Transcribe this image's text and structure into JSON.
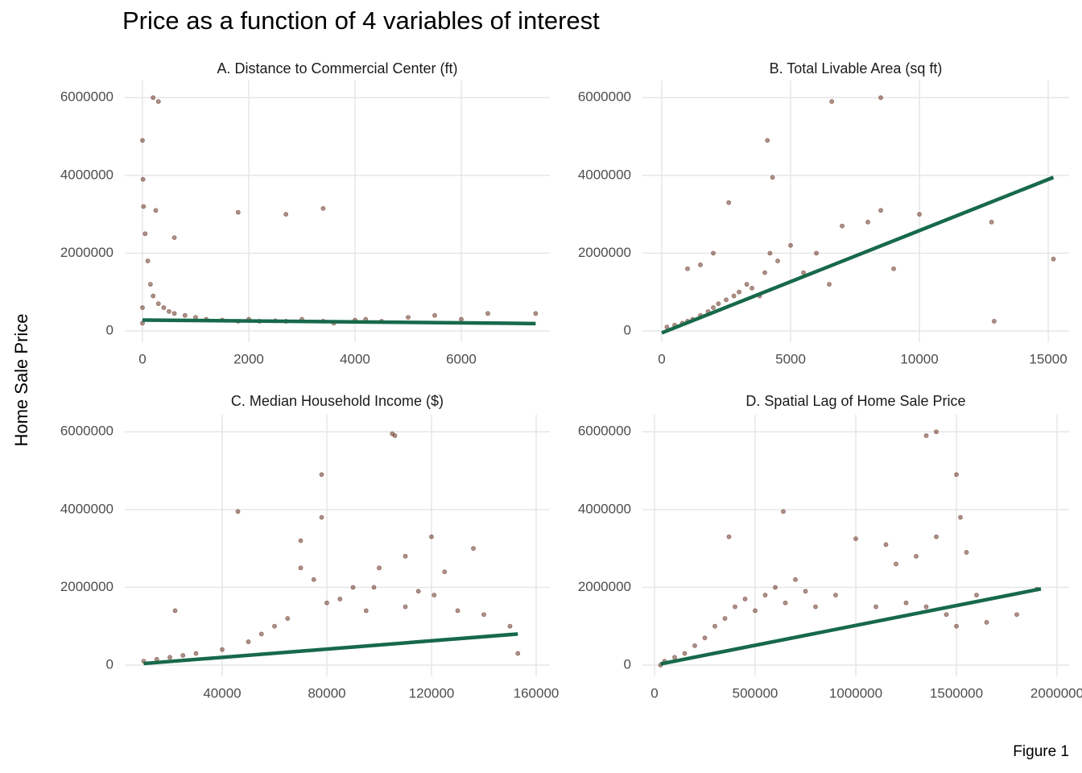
{
  "title": "Price as a function of 4 variables of interest",
  "ylabel": "Home Sale Price",
  "caption": "Figure 1",
  "chart_data": [
    {
      "type": "scatter",
      "title": "A. Distance to Commercial Center (ft)",
      "color": "#5c2211",
      "grid": true,
      "x": [
        0,
        10,
        20,
        50,
        100,
        150,
        200,
        300,
        400,
        500,
        600,
        800,
        1000,
        1200,
        1500,
        1800,
        2000,
        2200,
        2500,
        2700,
        3000,
        3400,
        3600,
        4000,
        4200,
        4500,
        5000,
        5500,
        6000,
        6500,
        7400,
        0,
        0,
        300,
        200,
        1800,
        2700,
        3400,
        250,
        600
      ],
      "values": [
        4900000,
        3900000,
        3200000,
        2500000,
        1800000,
        1200000,
        900000,
        700000,
        600000,
        500000,
        450000,
        400000,
        350000,
        300000,
        280000,
        250000,
        300000,
        250000,
        260000,
        250000,
        300000,
        250000,
        200000,
        280000,
        300000,
        250000,
        350000,
        400000,
        300000,
        450000,
        450000,
        200000,
        600000,
        5900000,
        6000000,
        3050000,
        3000000,
        3150000,
        3100000,
        2400000
      ],
      "fit": {
        "color": "#17694a",
        "x": [
          0,
          7400
        ],
        "values": [
          280000,
          190000
        ]
      },
      "xlim": [
        -333,
        7667
      ],
      "xticks": [
        0,
        2000,
        4000,
        6000
      ],
      "ylim": [
        -290000,
        6440000
      ],
      "yticks": [
        0,
        2000000,
        4000000,
        6000000
      ]
    },
    {
      "type": "scatter",
      "title": "B. Total Livable Area (sq ft)",
      "color": "#5c2211",
      "grid": true,
      "x": [
        200,
        500,
        800,
        1000,
        1200,
        1500,
        1800,
        2000,
        2200,
        2500,
        2800,
        3000,
        3300,
        3500,
        3800,
        4000,
        4200,
        4500,
        5000,
        5500,
        6000,
        6500,
        7000,
        8000,
        8500,
        9000,
        10000,
        12800,
        12900,
        15200,
        6600,
        8500,
        4100,
        4300,
        2600,
        1000,
        1500,
        2000
      ],
      "values": [
        100000,
        150000,
        200000,
        250000,
        300000,
        400000,
        500000,
        600000,
        700000,
        800000,
        900000,
        1000000,
        1200000,
        1100000,
        900000,
        1500000,
        2000000,
        1800000,
        2200000,
        1500000,
        2000000,
        1200000,
        2700000,
        2800000,
        3100000,
        1600000,
        3000000,
        2800000,
        250000,
        1850000,
        5900000,
        6000000,
        4900000,
        3950000,
        3300000,
        1600000,
        1700000,
        2000000
      ],
      "fit": {
        "color": "#17694a",
        "x": [
          0,
          15200
        ],
        "values": [
          -50000,
          3950000
        ]
      },
      "xlim": [
        -750,
        15810
      ],
      "xticks": [
        0,
        5000,
        10000,
        15000
      ],
      "ylim": [
        -290000,
        6440000
      ],
      "yticks": [
        0,
        2000000,
        4000000,
        6000000
      ]
    },
    {
      "type": "scatter",
      "title": "C. Median Household Income ($)",
      "color": "#5c2211",
      "grid": true,
      "x": [
        10000,
        15000,
        20000,
        25000,
        30000,
        40000,
        46000,
        50000,
        55000,
        60000,
        65000,
        70000,
        75000,
        78000,
        80000,
        85000,
        90000,
        95000,
        100000,
        105000,
        106000,
        110000,
        115000,
        120000,
        125000,
        130000,
        136000,
        140000,
        150000,
        153000,
        22000,
        70000,
        78000,
        98000,
        110000,
        121000
      ],
      "values": [
        100000,
        150000,
        200000,
        250000,
        300000,
        400000,
        3950000,
        600000,
        800000,
        1000000,
        1200000,
        3200000,
        2200000,
        4900000,
        1600000,
        1700000,
        2000000,
        1400000,
        2500000,
        5950000,
        5900000,
        2800000,
        1900000,
        3300000,
        2400000,
        1400000,
        3000000,
        1300000,
        1000000,
        300000,
        1400000,
        2500000,
        3800000,
        2000000,
        1500000,
        1800000
      ],
      "fit": {
        "color": "#17694a",
        "x": [
          10000,
          153000
        ],
        "values": [
          40000,
          800000
        ]
      },
      "xlim": [
        2770,
        165230
      ],
      "xticks": [
        40000,
        80000,
        120000,
        160000
      ],
      "ylim": [
        -290000,
        6440000
      ],
      "yticks": [
        0,
        2000000,
        4000000,
        6000000
      ]
    },
    {
      "type": "scatter",
      "title": "D. Spatial Lag of Home Sale Price",
      "color": "#5c2211",
      "grid": true,
      "x": [
        30000,
        50000,
        100000,
        150000,
        200000,
        250000,
        300000,
        350000,
        400000,
        450000,
        500000,
        550000,
        600000,
        650000,
        700000,
        750000,
        800000,
        900000,
        1000000,
        1100000,
        1150000,
        1200000,
        1250000,
        1300000,
        1350000,
        1400000,
        1450000,
        1500000,
        1550000,
        1600000,
        1650000,
        1800000,
        1900000,
        1350000,
        1400000,
        1500000,
        1520000,
        640000,
        370000
      ],
      "values": [
        0,
        100000,
        200000,
        300000,
        500000,
        700000,
        1000000,
        1200000,
        1500000,
        1700000,
        1400000,
        1800000,
        2000000,
        1600000,
        2200000,
        1900000,
        1500000,
        1800000,
        3250000,
        1500000,
        3100000,
        2600000,
        1600000,
        2800000,
        1500000,
        3300000,
        1300000,
        1000000,
        2900000,
        1800000,
        1100000,
        1300000,
        1950000,
        5900000,
        6000000,
        4900000,
        3800000,
        3950000,
        3300000
      ],
      "fit": {
        "color": "#17694a",
        "x": [
          30000,
          1920000
        ],
        "values": [
          30000,
          1960000
        ]
      },
      "xlim": [
        -60000,
        2060000
      ],
      "xticks": [
        0,
        500000,
        1000000,
        1500000,
        2000000
      ],
      "ylim": [
        -290000,
        6440000
      ],
      "yticks": [
        0,
        2000000,
        4000000,
        6000000
      ]
    }
  ]
}
